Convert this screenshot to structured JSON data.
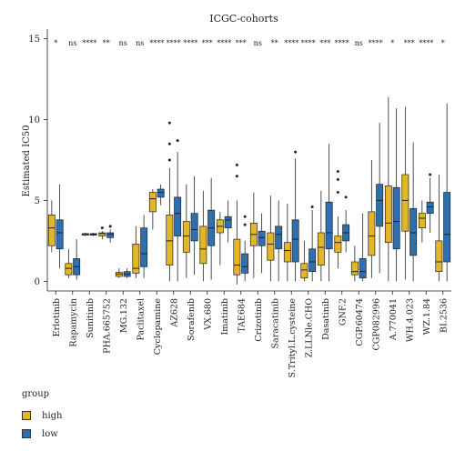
{
  "chart_data": {
    "type": "box",
    "title": "ICGC-cohorts",
    "ylabel": "Estimated IC50",
    "xlabel": "",
    "ylim": [
      -0.6,
      15.6
    ],
    "yticks": [
      0,
      5,
      10,
      15
    ],
    "legend": {
      "title": "group",
      "placement": "bottom-left",
      "entries": [
        {
          "label": "high",
          "color": "#e3b625"
        },
        {
          "label": "low",
          "color": "#2e6fad"
        }
      ]
    },
    "groups": [
      {
        "name": "Erlotinib",
        "sig": "*",
        "high": {
          "whislo": 1.8,
          "q1": 2.2,
          "med": 3.3,
          "q3": 4.1,
          "whishi": 5.0,
          "outliers": []
        },
        "low": {
          "whislo": 0.8,
          "q1": 2.0,
          "med": 3.0,
          "q3": 3.8,
          "whishi": 6.0,
          "outliers": []
        }
      },
      {
        "name": "Rapamycin",
        "sig": "ns",
        "high": {
          "whislo": 0.2,
          "q1": 0.4,
          "med": 0.8,
          "q3": 1.1,
          "whishi": 2.0,
          "outliers": []
        },
        "low": {
          "whislo": 0.1,
          "q1": 0.4,
          "med": 0.9,
          "q3": 1.4,
          "whishi": 2.6,
          "outliers": []
        }
      },
      {
        "name": "Sunitinib",
        "sig": "****",
        "high": {
          "whislo": 2.8,
          "q1": 2.85,
          "med": 2.9,
          "q3": 2.95,
          "whishi": 3.0,
          "outliers": []
        },
        "low": {
          "whislo": 2.8,
          "q1": 2.85,
          "med": 2.9,
          "q3": 2.95,
          "whishi": 3.0,
          "outliers": []
        }
      },
      {
        "name": "PHA.665752",
        "sig": "**",
        "high": {
          "whislo": 2.6,
          "q1": 2.8,
          "med": 2.95,
          "q3": 3.0,
          "whishi": 3.1,
          "outliers": [
            3.3
          ]
        },
        "low": {
          "whislo": 2.4,
          "q1": 2.7,
          "med": 2.9,
          "q3": 3.0,
          "whishi": 3.2,
          "outliers": [
            3.4
          ]
        }
      },
      {
        "name": "MG.132",
        "sig": "ns",
        "high": {
          "whislo": 0.2,
          "q1": 0.3,
          "med": 0.45,
          "q3": 0.55,
          "whishi": 0.8,
          "outliers": []
        },
        "low": {
          "whislo": 0.2,
          "q1": 0.3,
          "med": 0.45,
          "q3": 0.6,
          "whishi": 0.8,
          "outliers": []
        }
      },
      {
        "name": "Paclitaxel",
        "sig": "ns",
        "high": {
          "whislo": 0.2,
          "q1": 0.5,
          "med": 0.8,
          "q3": 2.3,
          "whishi": 3.4,
          "outliers": []
        },
        "low": {
          "whislo": 0.2,
          "q1": 0.9,
          "med": 1.7,
          "q3": 3.3,
          "whishi": 4.1,
          "outliers": []
        }
      },
      {
        "name": "Cyclopamine",
        "sig": "****",
        "high": {
          "whislo": 3.2,
          "q1": 4.3,
          "med": 5.1,
          "q3": 5.5,
          "whishi": 5.7,
          "outliers": []
        },
        "low": {
          "whislo": 4.7,
          "q1": 5.2,
          "med": 5.5,
          "q3": 5.7,
          "whishi": 6.0,
          "outliers": []
        }
      },
      {
        "name": "AZ628",
        "sig": "****",
        "high": {
          "whislo": 0.0,
          "q1": 1.0,
          "med": 2.5,
          "q3": 4.1,
          "whishi": 7.0,
          "outliers": [
            7.5,
            8.5,
            9.8
          ]
        },
        "low": {
          "whislo": 0.0,
          "q1": 2.8,
          "med": 4.2,
          "q3": 5.2,
          "whishi": 8.0,
          "outliers": [
            8.7
          ]
        }
      },
      {
        "name": "Sorafenib",
        "sig": "****",
        "high": {
          "whislo": 0.2,
          "q1": 1.8,
          "med": 2.8,
          "q3": 3.7,
          "whishi": 6.0,
          "outliers": []
        },
        "low": {
          "whislo": 0.4,
          "q1": 2.5,
          "med": 3.2,
          "q3": 4.2,
          "whishi": 6.5,
          "outliers": []
        }
      },
      {
        "name": "VX.680",
        "sig": "***",
        "high": {
          "whislo": 0.0,
          "q1": 1.1,
          "med": 2.0,
          "q3": 3.4,
          "whishi": 5.6,
          "outliers": []
        },
        "low": {
          "whislo": 0.1,
          "q1": 2.2,
          "med": 3.3,
          "q3": 4.4,
          "whishi": 6.4,
          "outliers": []
        }
      },
      {
        "name": "Imatinib",
        "sig": "****",
        "high": {
          "whislo": 1.0,
          "q1": 3.0,
          "med": 3.4,
          "q3": 3.8,
          "whishi": 4.3,
          "outliers": []
        },
        "low": {
          "whislo": 2.4,
          "q1": 3.3,
          "med": 3.8,
          "q3": 4.0,
          "whishi": 5.0,
          "outliers": []
        }
      },
      {
        "name": "TAE684",
        "sig": "***",
        "high": {
          "whislo": -0.2,
          "q1": 0.4,
          "med": 1.0,
          "q3": 2.6,
          "whishi": 5.0,
          "outliers": [
            6.5,
            7.2
          ]
        },
        "low": {
          "whislo": 0.0,
          "q1": 0.5,
          "med": 0.9,
          "q3": 1.7,
          "whishi": 2.5,
          "outliers": [
            3.5,
            4.0
          ]
        }
      },
      {
        "name": "Crizotinib",
        "sig": "ns",
        "high": {
          "whislo": 0.2,
          "q1": 2.2,
          "med": 2.9,
          "q3": 3.6,
          "whishi": 5.5,
          "outliers": []
        },
        "low": {
          "whislo": 0.5,
          "q1": 2.2,
          "med": 2.7,
          "q3": 3.1,
          "whishi": 4.2,
          "outliers": []
        }
      },
      {
        "name": "Saracatinib",
        "sig": "**",
        "high": {
          "whislo": 0.0,
          "q1": 1.3,
          "med": 2.3,
          "q3": 3.0,
          "whishi": 5.3,
          "outliers": []
        },
        "low": {
          "whislo": 0.0,
          "q1": 2.0,
          "med": 2.9,
          "q3": 3.4,
          "whishi": 5.0,
          "outliers": []
        }
      },
      {
        "name": "S.Trityl.L.cysteine",
        "sig": "****",
        "high": {
          "whislo": 0.0,
          "q1": 1.2,
          "med": 1.9,
          "q3": 2.4,
          "whishi": 4.8,
          "outliers": []
        },
        "low": {
          "whislo": 0.0,
          "q1": 1.2,
          "med": 2.6,
          "q3": 3.8,
          "whishi": 7.6,
          "outliers": [
            8.0
          ]
        }
      },
      {
        "name": "Z.LLNle.CHO",
        "sig": "****",
        "high": {
          "whislo": 0.0,
          "q1": 0.2,
          "med": 0.7,
          "q3": 1.1,
          "whishi": 2.5,
          "outliers": []
        },
        "low": {
          "whislo": 0.0,
          "q1": 0.6,
          "med": 1.2,
          "q3": 2.0,
          "whishi": 4.4,
          "outliers": [
            4.6
          ]
        }
      },
      {
        "name": "Dasatinib",
        "sig": "***",
        "high": {
          "whislo": 0.0,
          "q1": 1.0,
          "med": 2.1,
          "q3": 3.0,
          "whishi": 5.6,
          "outliers": []
        },
        "low": {
          "whislo": 0.0,
          "q1": 2.0,
          "med": 3.0,
          "q3": 4.9,
          "whishi": 8.5,
          "outliers": []
        }
      },
      {
        "name": "GNF.2",
        "sig": "****",
        "high": {
          "whislo": 0.8,
          "q1": 1.8,
          "med": 2.4,
          "q3": 2.8,
          "whishi": 4.0,
          "outliers": [
            5.5,
            6.3,
            6.8
          ]
        },
        "low": {
          "whislo": 1.8,
          "q1": 2.5,
          "med": 3.0,
          "q3": 3.5,
          "whishi": 4.4,
          "outliers": [
            5.2
          ]
        }
      },
      {
        "name": "CGP.60474",
        "sig": "ns",
        "high": {
          "whislo": 0.0,
          "q1": 0.4,
          "med": 0.6,
          "q3": 1.2,
          "whishi": 2.2,
          "outliers": []
        },
        "low": {
          "whislo": 0.0,
          "q1": 0.2,
          "med": 0.6,
          "q3": 1.4,
          "whishi": 4.2,
          "outliers": []
        }
      },
      {
        "name": "CGP082996",
        "sig": "****",
        "high": {
          "whislo": 0.2,
          "q1": 1.6,
          "med": 2.8,
          "q3": 4.3,
          "whishi": 7.5,
          "outliers": []
        },
        "low": {
          "whislo": 0.5,
          "q1": 3.4,
          "med": 5.0,
          "q3": 6.0,
          "whishi": 9.8,
          "outliers": []
        }
      },
      {
        "name": "A.770041",
        "sig": "*",
        "high": {
          "whislo": 0.0,
          "q1": 2.4,
          "med": 3.6,
          "q3": 5.9,
          "whishi": 11.4,
          "outliers": []
        },
        "low": {
          "whislo": 0.0,
          "q1": 2.0,
          "med": 3.7,
          "q3": 5.8,
          "whishi": 10.7,
          "outliers": []
        }
      },
      {
        "name": "WH.4.023",
        "sig": "***",
        "high": {
          "whislo": 0.1,
          "q1": 3.1,
          "med": 5.0,
          "q3": 6.6,
          "whishi": 10.8,
          "outliers": []
        },
        "low": {
          "whislo": 0.0,
          "q1": 1.6,
          "med": 3.0,
          "q3": 4.5,
          "whishi": 8.6,
          "outliers": []
        }
      },
      {
        "name": "WZ.1.84",
        "sig": "****",
        "high": {
          "whislo": 2.4,
          "q1": 3.3,
          "med": 3.9,
          "q3": 4.2,
          "whishi": 5.0,
          "outliers": []
        },
        "low": {
          "whislo": 3.0,
          "q1": 4.2,
          "med": 4.6,
          "q3": 4.9,
          "whishi": 6.4,
          "outliers": [
            6.6
          ]
        }
      },
      {
        "name": "BI.2536",
        "sig": "*",
        "high": {
          "whislo": 0.0,
          "q1": 0.6,
          "med": 1.2,
          "q3": 2.5,
          "whishi": 6.6,
          "outliers": []
        },
        "low": {
          "whislo": 0.0,
          "q1": 1.2,
          "med": 2.9,
          "q3": 5.5,
          "whishi": 11.0,
          "outliers": []
        }
      }
    ]
  }
}
